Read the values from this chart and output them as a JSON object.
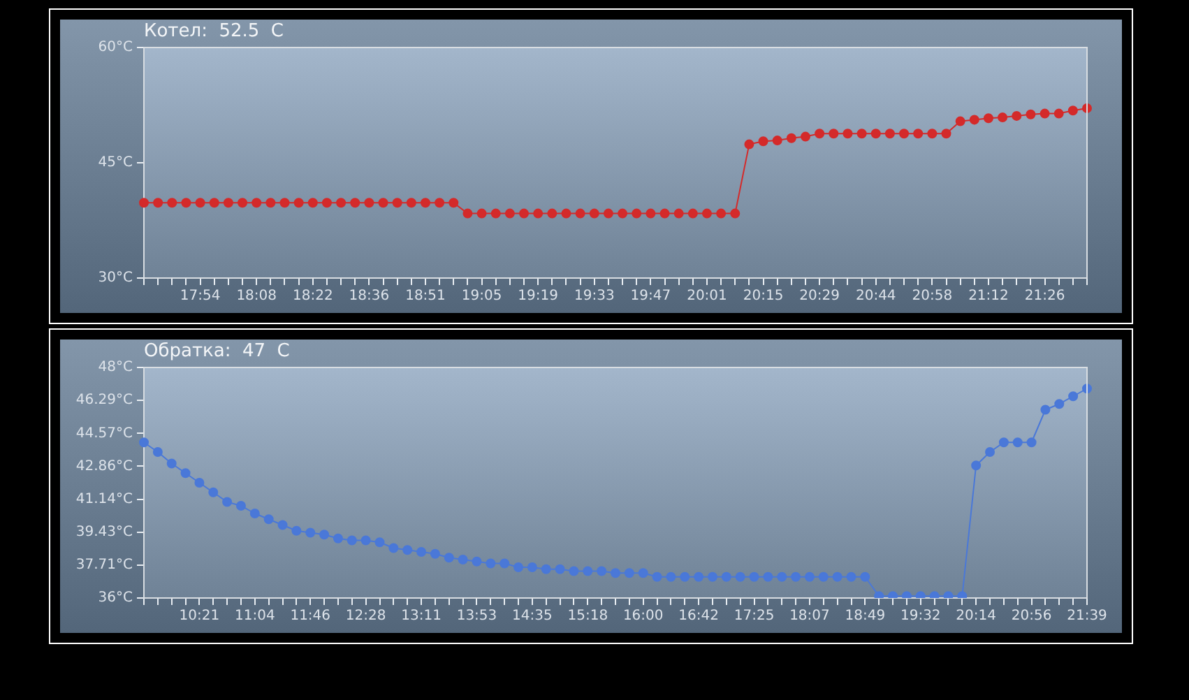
{
  "chart_data": [
    {
      "type": "line",
      "title": "Котел:  52.5  C",
      "categories": [
        null,
        null,
        null,
        null,
        "17:54",
        null,
        null,
        null,
        "18:08",
        null,
        null,
        null,
        "18:22",
        null,
        null,
        null,
        "18:36",
        null,
        null,
        null,
        "18:51",
        null,
        null,
        null,
        "19:05",
        null,
        null,
        null,
        "19:19",
        null,
        null,
        null,
        "19:33",
        null,
        null,
        null,
        "19:47",
        null,
        null,
        null,
        "20:01",
        null,
        null,
        null,
        "20:15",
        null,
        null,
        null,
        "20:29",
        null,
        null,
        null,
        "20:44",
        null,
        null,
        null,
        "20:58",
        null,
        null,
        null,
        "21:12",
        null,
        null,
        null,
        "21:26",
        null,
        null,
        null
      ],
      "series": [
        {
          "color": "#d42a2a",
          "values": [
            39.8,
            39.8,
            39.8,
            39.8,
            39.8,
            39.8,
            39.8,
            39.8,
            39.8,
            39.8,
            39.8,
            39.8,
            39.8,
            39.8,
            39.8,
            39.8,
            39.8,
            39.8,
            39.8,
            39.8,
            39.8,
            39.8,
            39.8,
            38.4,
            38.4,
            38.4,
            38.4,
            38.4,
            38.4,
            38.4,
            38.4,
            38.4,
            38.4,
            38.4,
            38.4,
            38.4,
            38.4,
            38.4,
            38.4,
            38.4,
            38.4,
            38.4,
            38.4,
            47.4,
            47.8,
            47.9,
            48.2,
            48.4,
            48.8,
            48.8,
            48.8,
            48.8,
            48.8,
            48.8,
            48.8,
            48.8,
            48.8,
            48.8,
            50.4,
            50.6,
            50.8,
            50.9,
            51.1,
            51.3,
            51.4,
            51.4,
            51.8,
            52.1
          ]
        }
      ],
      "ylim": [
        30,
        60
      ],
      "yticks": [
        {
          "value": 30,
          "label": "30°C"
        },
        {
          "value": 45,
          "label": "45°C"
        },
        {
          "value": 60,
          "label": "60°C"
        }
      ],
      "marker": "circle",
      "grid": false,
      "legend": false
    },
    {
      "type": "line",
      "title": "Обратка:  47  C",
      "categories": [
        null,
        null,
        null,
        null,
        "10:21",
        null,
        null,
        null,
        "11:04",
        null,
        null,
        null,
        "11:46",
        null,
        null,
        null,
        "12:28",
        null,
        null,
        null,
        "13:11",
        null,
        null,
        null,
        "13:53",
        null,
        null,
        null,
        "14:35",
        null,
        null,
        null,
        "15:18",
        null,
        null,
        null,
        "16:00",
        null,
        null,
        null,
        "16:42",
        null,
        null,
        null,
        "17:25",
        null,
        null,
        null,
        "18:07",
        null,
        null,
        null,
        "18:49",
        null,
        null,
        null,
        "19:32",
        null,
        null,
        null,
        "20:14",
        null,
        null,
        null,
        "20:56",
        null,
        null,
        null,
        "21:39"
      ],
      "series": [
        {
          "color": "#4a78d8",
          "values": [
            44.1,
            43.6,
            43.0,
            42.5,
            42.0,
            41.5,
            41.0,
            40.8,
            40.4,
            40.1,
            39.8,
            39.5,
            39.4,
            39.3,
            39.1,
            39.0,
            39.0,
            38.9,
            38.6,
            38.5,
            38.4,
            38.3,
            38.1,
            38.0,
            37.9,
            37.8,
            37.8,
            37.6,
            37.6,
            37.5,
            37.5,
            37.4,
            37.4,
            37.4,
            37.3,
            37.3,
            37.3,
            37.1,
            37.1,
            37.1,
            37.1,
            37.1,
            37.1,
            37.1,
            37.1,
            37.1,
            37.1,
            37.1,
            37.1,
            37.1,
            37.1,
            37.1,
            37.1,
            36.1,
            36.1,
            36.1,
            36.1,
            36.1,
            36.1,
            36.1,
            42.9,
            43.6,
            44.1,
            44.1,
            44.1,
            45.8,
            46.1,
            46.5,
            46.9
          ]
        }
      ],
      "ylim": [
        36,
        48
      ],
      "yticks": [
        {
          "value": 36,
          "label": "36°C"
        },
        {
          "value": 37.71,
          "label": "37.71°C"
        },
        {
          "value": 39.43,
          "label": "39.43°C"
        },
        {
          "value": 41.14,
          "label": "41.14°C"
        },
        {
          "value": 42.86,
          "label": "42.86°C"
        },
        {
          "value": 44.57,
          "label": "44.57°C"
        },
        {
          "value": 46.29,
          "label": "46.29°C"
        },
        {
          "value": 48,
          "label": "48°C"
        }
      ],
      "marker": "circle",
      "grid": false,
      "legend": false
    }
  ]
}
